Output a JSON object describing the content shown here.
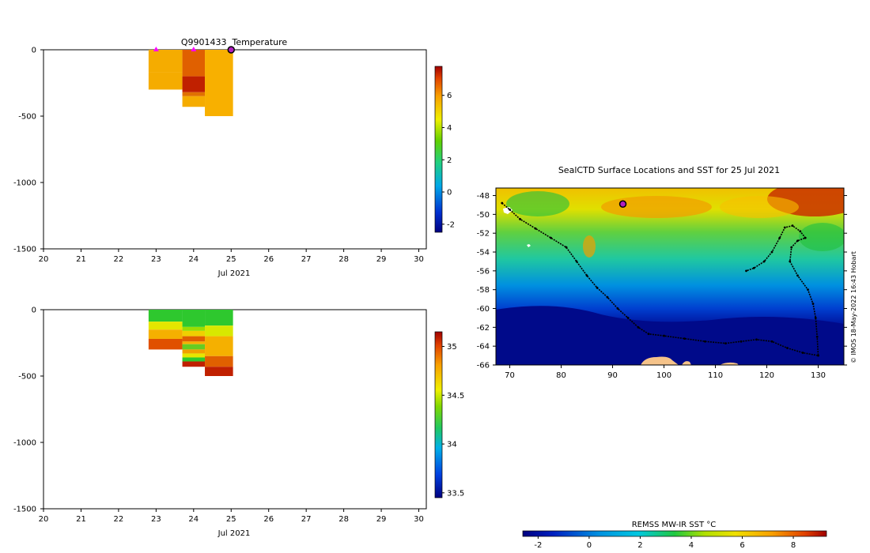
{
  "chart_data": [
    {
      "type": "heatmap",
      "title": "Q9901433  Temperature",
      "xlabel": "Jul 2021",
      "ylabel": "",
      "x_ticks": [
        "20",
        "21",
        "22",
        "23",
        "24",
        "25",
        "26",
        "27",
        "28",
        "29",
        "30"
      ],
      "y_ticks": [
        "0",
        "-500",
        "-1000",
        "-1500"
      ],
      "xlim": [
        20,
        30.2
      ],
      "ylim": [
        -1500,
        0
      ],
      "colorbar": {
        "ticks": [
          "6",
          "4",
          "2",
          "0",
          "-2"
        ],
        "range": [
          -2.5,
          7.8
        ]
      },
      "profiles": [
        {
          "x_start": 22.8,
          "x_end": 23.7,
          "depth": -300,
          "layers": [
            [
              0,
              -170,
              "#f5ac00"
            ],
            [
              -170,
              -300,
              "#f5ac00"
            ]
          ]
        },
        {
          "x_start": 23.7,
          "x_end": 24.3,
          "depth": -430,
          "layers": [
            [
              0,
              -200,
              "#e06000"
            ],
            [
              -200,
              -320,
              "#c02000"
            ],
            [
              -320,
              -350,
              "#e07000"
            ],
            [
              -350,
              -430,
              "#f5ac00"
            ]
          ]
        },
        {
          "x_start": 24.3,
          "x_end": 25.05,
          "depth": -500,
          "layers": [
            [
              0,
              -500,
              "#f8b000"
            ]
          ]
        }
      ],
      "markers": [
        {
          "x": 23.0,
          "y": 0,
          "kind": "magenta-triangle"
        },
        {
          "x": 24.0,
          "y": 0,
          "kind": "magenta-triangle"
        },
        {
          "x": 25.0,
          "y": 0,
          "kind": "current-position"
        }
      ]
    },
    {
      "type": "heatmap",
      "title": "",
      "xlabel": "Jul 2021",
      "ylabel": "",
      "x_ticks": [
        "20",
        "21",
        "22",
        "23",
        "24",
        "25",
        "26",
        "27",
        "28",
        "29",
        "30"
      ],
      "y_ticks": [
        "0",
        "-500",
        "-1000",
        "-1500"
      ],
      "xlim": [
        20,
        30.2
      ],
      "ylim": [
        -1500,
        0
      ],
      "colorbar": {
        "ticks": [
          "35",
          "34.5",
          "34",
          "33.5"
        ],
        "range": [
          33.45,
          35.15
        ]
      },
      "profiles": [
        {
          "x_start": 22.8,
          "x_end": 23.7,
          "depth": -300,
          "layers": [
            [
              0,
              -90,
              "#2ec82e"
            ],
            [
              -90,
              -150,
              "#e6e600"
            ],
            [
              -150,
              -220,
              "#f5b000"
            ],
            [
              -220,
              -300,
              "#e05000"
            ]
          ]
        },
        {
          "x_start": 23.7,
          "x_end": 24.3,
          "depth": -430,
          "layers": [
            [
              0,
              -130,
              "#2ec82e"
            ],
            [
              -130,
              -160,
              "#99dd00"
            ],
            [
              -160,
              -200,
              "#f0d000"
            ],
            [
              -200,
              -240,
              "#e06000"
            ],
            [
              -240,
              -260,
              "#f5b000"
            ],
            [
              -260,
              -300,
              "#66cc22"
            ],
            [
              -300,
              -330,
              "#f0a000"
            ],
            [
              -330,
              -360,
              "#e6e600"
            ],
            [
              -360,
              -390,
              "#2ec82e"
            ],
            [
              -390,
              -430,
              "#c02000"
            ]
          ]
        },
        {
          "x_start": 24.3,
          "x_end": 25.05,
          "depth": -500,
          "layers": [
            [
              0,
              -120,
              "#2ec82e"
            ],
            [
              -120,
              -200,
              "#d8e800"
            ],
            [
              -200,
              -350,
              "#f5b000"
            ],
            [
              -350,
              -430,
              "#e06000"
            ],
            [
              -430,
              -500,
              "#c02000"
            ]
          ]
        }
      ]
    },
    {
      "type": "heatmap",
      "title": "SealCTD Surface Locations and SST for 25 Jul 2021",
      "xlabel": "",
      "ylabel": "",
      "x_ticks": [
        "70",
        "80",
        "90",
        "100",
        "110",
        "120",
        "130"
      ],
      "y_ticks": [
        "-48",
        "-50",
        "-52",
        "-54",
        "-56",
        "-58",
        "-60",
        "-62",
        "-64",
        "-66"
      ],
      "xlim": [
        67.3,
        135
      ],
      "ylim": [
        -66,
        -47.2
      ],
      "credit": "© IMOS 18-May-2022 16:43 Hobart",
      "colorbar": {
        "label": "REMSS MW-IR SST °C",
        "ticks": [
          "-2",
          "0",
          "2",
          "4",
          "6",
          "8"
        ],
        "range": [
          -2.6,
          9.3
        ]
      },
      "track": [
        [
          68.5,
          -48.8
        ],
        [
          70,
          -49.5
        ],
        [
          72,
          -50.5
        ],
        [
          75,
          -51.5
        ],
        [
          78,
          -52.5
        ],
        [
          81,
          -53.5
        ],
        [
          83,
          -55
        ],
        [
          85,
          -56.5
        ],
        [
          87,
          -57.8
        ],
        [
          89,
          -58.8
        ],
        [
          91,
          -60
        ],
        [
          93,
          -61
        ],
        [
          95,
          -62
        ],
        [
          97,
          -62.7
        ],
        [
          100,
          -62.9
        ],
        [
          104,
          -63.2
        ],
        [
          108,
          -63.5
        ],
        [
          112,
          -63.7
        ],
        [
          115,
          -63.5
        ],
        [
          118,
          -63.3
        ],
        [
          121,
          -63.5
        ],
        [
          124,
          -64.2
        ],
        [
          127,
          -64.7
        ],
        [
          130,
          -65
        ],
        [
          129.8,
          -63
        ],
        [
          129.5,
          -61
        ],
        [
          129,
          -59.5
        ],
        [
          128,
          -58
        ],
        [
          126,
          -56.5
        ],
        [
          124.5,
          -55
        ],
        [
          124.8,
          -53.5
        ],
        [
          126,
          -52.8
        ],
        [
          127.5,
          -52.5
        ],
        [
          126.5,
          -51.8
        ],
        [
          125,
          -51.2
        ],
        [
          123.5,
          -51.4
        ],
        [
          122.5,
          -52.5
        ],
        [
          121,
          -54
        ],
        [
          119.5,
          -55
        ],
        [
          117.5,
          -55.7
        ],
        [
          116,
          -56
        ]
      ],
      "current_position": [
        92,
        -48.9
      ]
    }
  ]
}
